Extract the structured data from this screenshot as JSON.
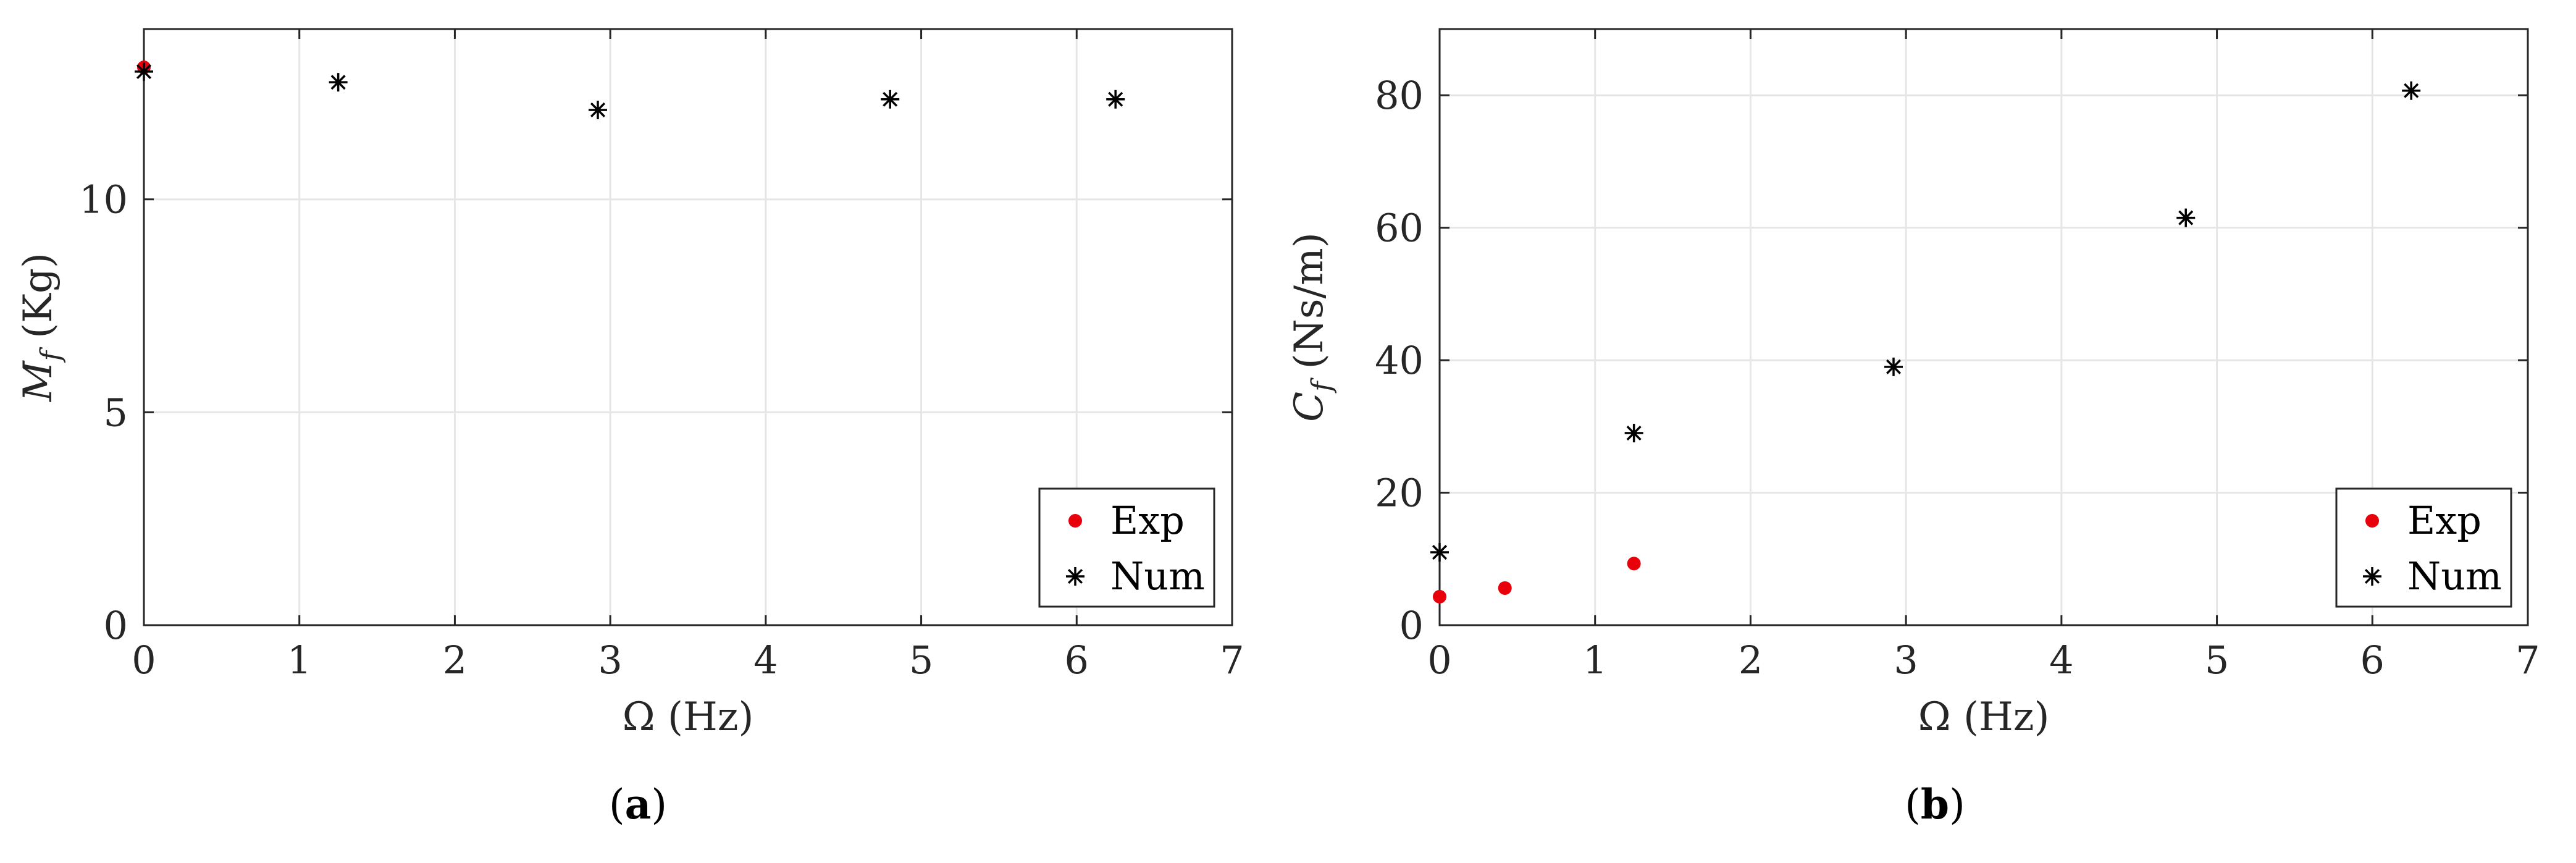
{
  "chart_data": [
    {
      "type": "scatter",
      "panel_label": "a",
      "xlabel": "Ω (Hz)",
      "ylabel_main": "M",
      "ylabel_sub": "f",
      "ylabel_unit": " (Kg)",
      "xlim": [
        0,
        7
      ],
      "ylim": [
        0,
        14
      ],
      "xticks": [
        0,
        1,
        2,
        3,
        4,
        5,
        6,
        7
      ],
      "yticks": [
        0,
        5,
        10
      ],
      "grid": true,
      "legend_position": "bottom-right",
      "series": [
        {
          "name": "Exp",
          "marker": "dot",
          "color": "#e8000b",
          "points": [
            [
              0,
              13.1
            ]
          ]
        },
        {
          "name": "Num",
          "marker": "star",
          "color": "#000000",
          "points": [
            [
              0,
              13.0
            ],
            [
              1.25,
              12.75
            ],
            [
              2.92,
              12.1
            ],
            [
              4.8,
              12.35
            ],
            [
              6.25,
              12.35
            ]
          ]
        }
      ]
    },
    {
      "type": "scatter",
      "panel_label": "b",
      "xlabel": "Ω (Hz)",
      "ylabel_main": "C",
      "ylabel_sub": "f",
      "ylabel_unit": " (Ns/m)",
      "xlim": [
        0,
        7
      ],
      "ylim": [
        0,
        90
      ],
      "xticks": [
        0,
        1,
        2,
        3,
        4,
        5,
        6,
        7
      ],
      "yticks": [
        0,
        20,
        40,
        60,
        80
      ],
      "grid": true,
      "legend_position": "bottom-right",
      "series": [
        {
          "name": "Exp",
          "marker": "dot",
          "color": "#e8000b",
          "points": [
            [
              0,
              4.3
            ],
            [
              0.42,
              5.6
            ],
            [
              1.25,
              9.3
            ]
          ]
        },
        {
          "name": "Num",
          "marker": "star",
          "color": "#000000",
          "points": [
            [
              0,
              11
            ],
            [
              1.25,
              29
            ],
            [
              2.92,
              39
            ],
            [
              4.8,
              61.5
            ],
            [
              6.25,
              80.7
            ]
          ]
        }
      ]
    }
  ]
}
